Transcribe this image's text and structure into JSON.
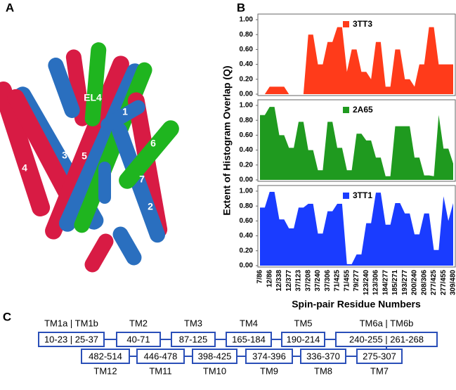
{
  "figure": {
    "panel_labels": [
      "A",
      "B",
      "C"
    ],
    "ylabel": "Extent of Histogram Overlap (Q)",
    "xlabel": "Spin-pair Residue Numbers"
  },
  "structure": {
    "labels": [
      "EL4",
      "1",
      "6",
      "3",
      "5",
      "4",
      "7",
      "2"
    ]
  },
  "chart_data": [
    {
      "type": "area",
      "categories": [
        "7/86",
        null,
        "12/86",
        null,
        "12/338",
        null,
        "12/377",
        null,
        "37/123",
        null,
        "37/208",
        null,
        "37/240",
        null,
        "37/306",
        null,
        "71/425",
        null,
        "71/455",
        null,
        "79/277",
        null,
        "123/240",
        null,
        "123/306",
        null,
        "184/277",
        null,
        "185/271",
        null,
        "193/277",
        null,
        "200/240",
        null,
        "208/306",
        null,
        "277/425",
        null,
        "277/455",
        null,
        "309/480"
      ],
      "series": [
        {
          "name": "3TT3",
          "color": "#ff3b1a",
          "values": [
            0,
            0,
            0.1,
            0.1,
            0.1,
            0.1,
            0,
            0,
            0,
            0,
            0.8,
            0.8,
            0.4,
            0.4,
            0.7,
            0.7,
            0.9,
            0.9,
            0.3,
            0.6,
            0.6,
            0.3,
            0.3,
            0.2,
            0.7,
            0.7,
            0.1,
            0.1,
            0.6,
            0.6,
            0.2,
            0.2,
            0.1,
            0.4,
            0.4,
            0.9,
            0.9,
            0.4,
            0.4,
            0.4,
            0.4
          ]
        }
      ],
      "ylim": [
        0,
        1
      ],
      "yticks": [
        {
          "value": 0,
          "label": "0.00"
        },
        {
          "value": 0.2,
          "label": "0.20"
        },
        {
          "value": 0.4,
          "label": "0.40"
        },
        {
          "value": 0.6,
          "label": "0.60"
        },
        {
          "value": 0.8,
          "label": "0.80"
        },
        {
          "value": 1,
          "label": "1.00"
        }
      ]
    },
    {
      "type": "area",
      "categories": [
        "7/86",
        null,
        "12/86",
        null,
        "12/338",
        null,
        "12/377",
        null,
        "37/123",
        null,
        "37/208",
        null,
        "37/240",
        null,
        "37/306",
        null,
        "71/425",
        null,
        "71/455",
        null,
        "79/277",
        null,
        "123/240",
        null,
        "123/306",
        null,
        "184/277",
        null,
        "185/271",
        null,
        "193/277",
        null,
        "200/240",
        null,
        "208/306",
        null,
        "277/425",
        null,
        "277/455",
        null,
        "309/480"
      ],
      "series": [
        {
          "name": "2A65",
          "color": "#1f9a1f",
          "values": [
            0.87,
            0.87,
            0.98,
            0.98,
            0.6,
            0.6,
            0.43,
            0.43,
            0.78,
            0.78,
            0.4,
            0.4,
            0.13,
            0.13,
            0.78,
            0.78,
            0.43,
            0.43,
            0.13,
            0.13,
            0.62,
            0.62,
            0.53,
            0.53,
            0.3,
            0.3,
            0.05,
            0.05,
            0.72,
            0.72,
            0.72,
            0.72,
            0.3,
            0.3,
            0.06,
            0.06,
            0.05,
            0.87,
            0.42,
            0.42,
            0.22
          ]
        }
      ],
      "ylim": [
        0,
        1
      ],
      "yticks": [
        {
          "value": 0,
          "label": "0.00"
        },
        {
          "value": 0.2,
          "label": "0.20"
        },
        {
          "value": 0.4,
          "label": "0.40"
        },
        {
          "value": 0.6,
          "label": "0.60"
        },
        {
          "value": 0.8,
          "label": "0.80"
        },
        {
          "value": 1,
          "label": "1.00"
        }
      ]
    },
    {
      "type": "area",
      "categories": [
        "7/86",
        null,
        "12/86",
        null,
        "12/338",
        null,
        "12/377",
        null,
        "37/123",
        null,
        "37/208",
        null,
        "37/240",
        null,
        "37/306",
        null,
        "71/425",
        null,
        "71/455",
        null,
        "79/277",
        null,
        "123/240",
        null,
        "123/306",
        null,
        "184/277",
        null,
        "185/271",
        null,
        "193/277",
        null,
        "200/240",
        null,
        "208/306",
        null,
        "277/425",
        null,
        "277/455",
        null,
        "309/480"
      ],
      "series": [
        {
          "name": "3TT1",
          "color": "#1a3cff",
          "values": [
            0.78,
            0.78,
            0.99,
            0.99,
            0.62,
            0.62,
            0.5,
            0.5,
            0.78,
            0.78,
            0.83,
            0.83,
            0.43,
            0.43,
            0.73,
            0.73,
            0.83,
            0.83,
            0.02,
            0.02,
            0.15,
            0.15,
            0.57,
            0.57,
            0.98,
            0.98,
            0.55,
            0.55,
            0.84,
            0.84,
            0.7,
            0.7,
            0.42,
            0.42,
            0.7,
            0.7,
            0.21,
            0.21,
            0.93,
            0.6,
            0.84
          ]
        }
      ],
      "ylim": [
        0,
        1
      ],
      "yticks": [
        {
          "value": 0,
          "label": "0.00"
        },
        {
          "value": 0.2,
          "label": "0.20"
        },
        {
          "value": 0.4,
          "label": "0.40"
        },
        {
          "value": 0.6,
          "label": "0.60"
        },
        {
          "value": 0.8,
          "label": "0.80"
        },
        {
          "value": 1,
          "label": "1.00"
        }
      ]
    }
  ],
  "topology": {
    "top": [
      {
        "label": "TM1a | TM1b",
        "range": "10-23 | 25-37"
      },
      {
        "label": "TM2",
        "range": "40-71"
      },
      {
        "label": "TM3",
        "range": "87-125"
      },
      {
        "label": "TM4",
        "range": "165-184"
      },
      {
        "label": "TM5",
        "range": "190-214"
      },
      {
        "label": "TM6a | TM6b",
        "range": "240-255 | 261-268"
      }
    ],
    "bottom": [
      {
        "label": "TM12",
        "range": "482-514"
      },
      {
        "label": "TM11",
        "range": "446-478"
      },
      {
        "label": "TM10",
        "range": "398-425"
      },
      {
        "label": "TM9",
        "range": "374-396"
      },
      {
        "label": "TM8",
        "range": "336-370"
      },
      {
        "label": "TM7",
        "range": "275-307"
      }
    ]
  }
}
